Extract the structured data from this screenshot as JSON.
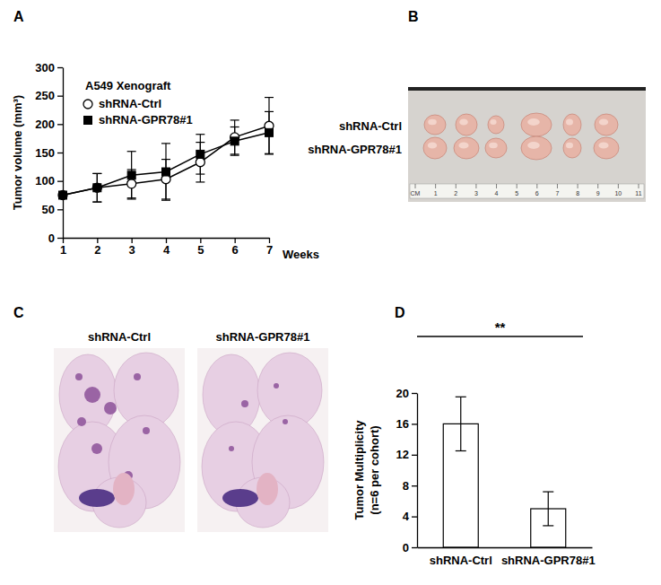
{
  "chart_data": [
    {
      "type": "line",
      "title": "A549 Xenograft",
      "xlabel": "Weeks",
      "ylabel": "Tumor volume (mm³)",
      "x": [
        1,
        2,
        3,
        4,
        5,
        6,
        7
      ],
      "series": [
        {
          "name": "shRNA-Ctrl",
          "color": "#000000",
          "marker": "open-circle",
          "line_style": "solid",
          "values": [
            75,
            88,
            95,
            103,
            133,
            177,
            197
          ],
          "errors": [
            0,
            25,
            25,
            35,
            35,
            30,
            50
          ]
        },
        {
          "name": "shRNA-GPR78#1",
          "color": "#000000",
          "marker": "square",
          "line_style": "solid",
          "values": [
            75,
            88,
            110,
            116,
            147,
            170,
            185
          ],
          "errors": [
            0,
            25,
            42,
            50,
            35,
            25,
            37
          ]
        }
      ],
      "xlim": [
        1,
        7
      ],
      "xticks": [
        1,
        2,
        3,
        4,
        5,
        6,
        7
      ],
      "ylim": [
        0,
        300
      ],
      "yticks": [
        0,
        50,
        100,
        150,
        200,
        250,
        300
      ],
      "grid": false,
      "legend": "top-left"
    },
    {
      "type": "bar",
      "ylabel": [
        "Tumor Multiplicity",
        "(n=6 per cohort)"
      ],
      "categories": [
        "shRNA-Ctrl",
        "shRNA-GPR78#1"
      ],
      "values": [
        16,
        5
      ],
      "errors": [
        3.5,
        2.2
      ],
      "color": "#ffffff",
      "ylim": [
        0,
        20
      ],
      "yticks": [
        0,
        4,
        8,
        12,
        16,
        20
      ],
      "grid": false,
      "annotations": [
        "**"
      ]
    }
  ],
  "panels": {
    "letters": [
      "A",
      "B",
      "C",
      "D"
    ],
    "B": {
      "row_labels": [
        "shRNA-Ctrl",
        "shRNA-GPR78#1"
      ],
      "ruler_labels": [
        "CM",
        "1",
        "2",
        "3",
        "4",
        "5",
        "6",
        "7",
        "8",
        "9",
        "10",
        "11"
      ]
    },
    "C": {
      "labels": [
        "shRNA-Ctrl",
        "shRNA-GPR78#1"
      ]
    }
  }
}
